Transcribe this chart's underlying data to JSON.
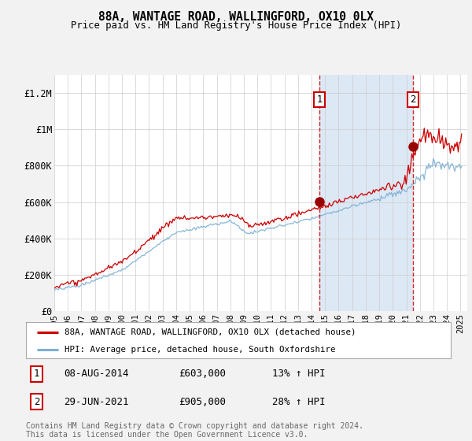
{
  "title": "88A, WANTAGE ROAD, WALLINGFORD, OX10 0LX",
  "subtitle": "Price paid vs. HM Land Registry's House Price Index (HPI)",
  "background_color": "#f2f2f2",
  "plot_background": "#ffffff",
  "shade_color": "#dde8f5",
  "ylim": [
    0,
    1300000
  ],
  "yticks": [
    0,
    200000,
    400000,
    600000,
    800000,
    1000000,
    1200000
  ],
  "ytick_labels": [
    "£0",
    "£200K",
    "£400K",
    "£600K",
    "£800K",
    "£1M",
    "£1.2M"
  ],
  "sale1_date_num": 2014.58,
  "sale1_price": 603000,
  "sale1_label": "1",
  "sale2_date_num": 2021.49,
  "sale2_price": 905000,
  "sale2_label": "2",
  "red_line_color": "#cc0000",
  "blue_line_color": "#7bafd4",
  "sale_marker_color": "#990000",
  "legend_entries": [
    "88A, WANTAGE ROAD, WALLINGFORD, OX10 0LX (detached house)",
    "HPI: Average price, detached house, South Oxfordshire"
  ],
  "table_rows": [
    [
      "1",
      "08-AUG-2014",
      "£603,000",
      "13% ↑ HPI"
    ],
    [
      "2",
      "29-JUN-2021",
      "£905,000",
      "28% ↑ HPI"
    ]
  ],
  "footer": "Contains HM Land Registry data © Crown copyright and database right 2024.\nThis data is licensed under the Open Government Licence v3.0."
}
